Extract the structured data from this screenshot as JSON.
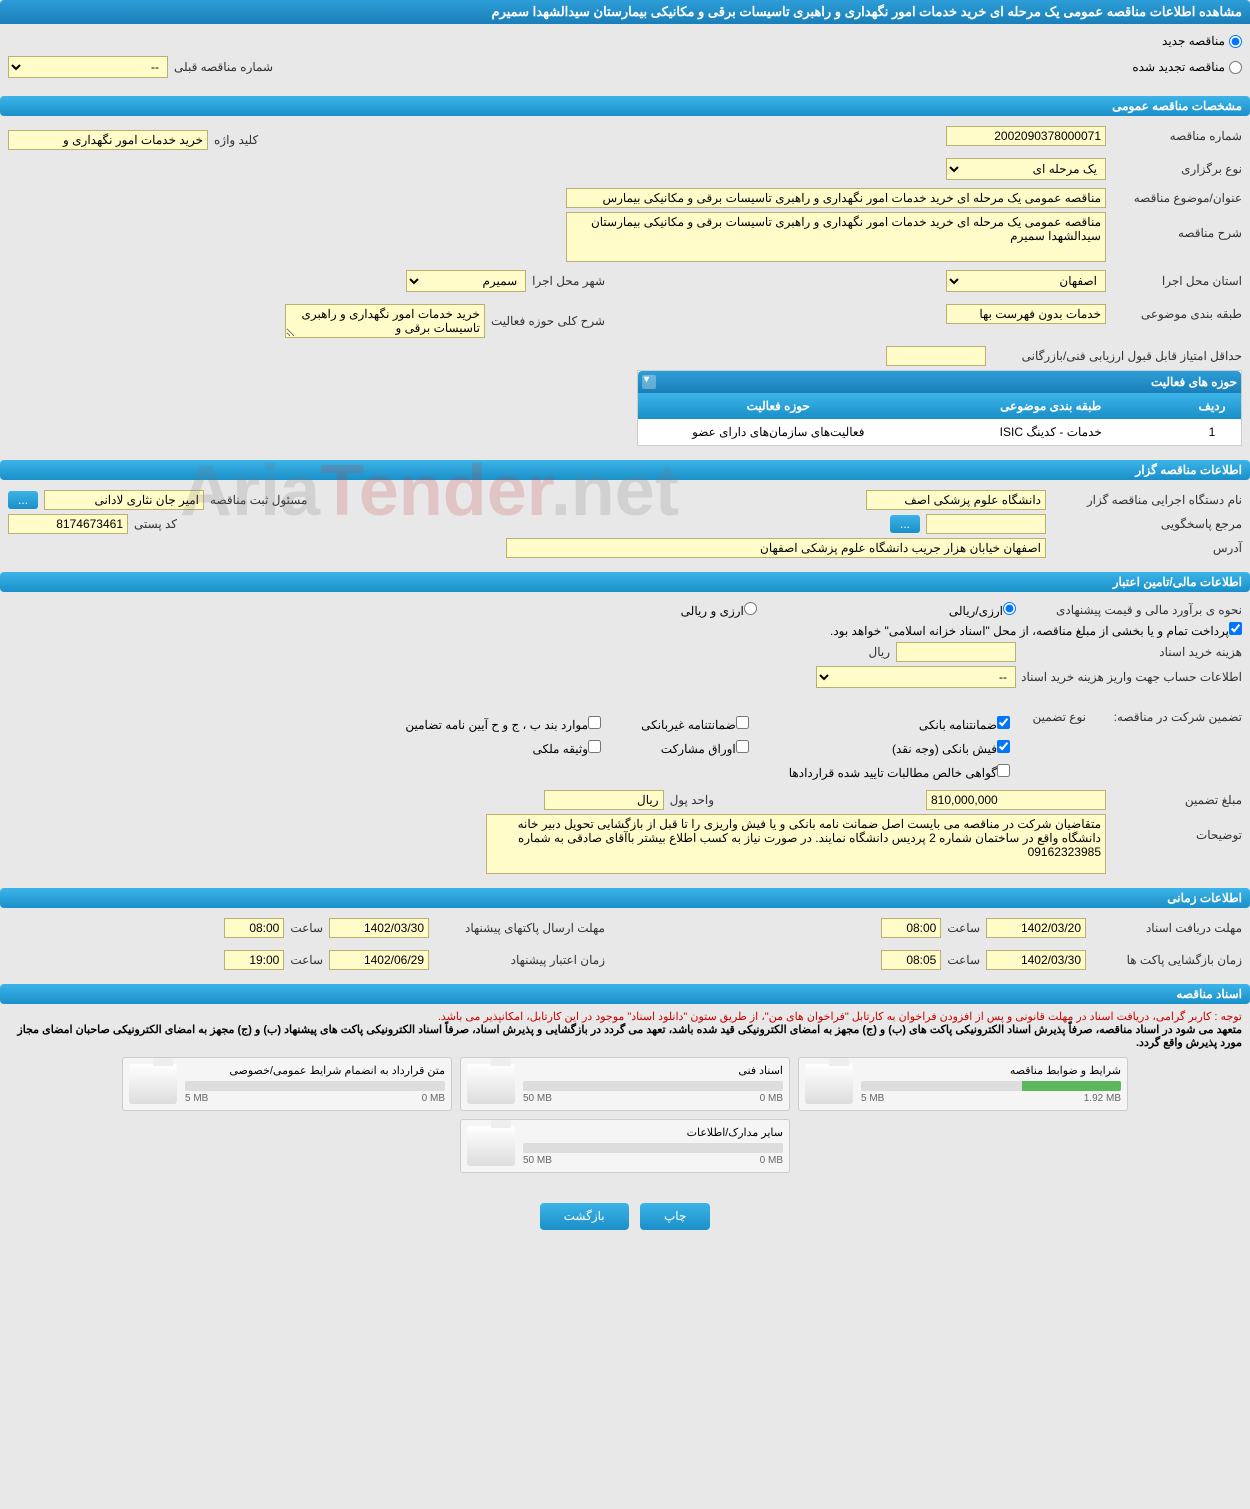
{
  "page_title": "مشاهده اطلاعات مناقصه عمومی یک مرحله ای خرید خدمات امور نگهداری و راهبری تاسیسات برقی و مکانیکی بیمارستان سیدالشهدا سمیرم",
  "radio_new": "مناقصه جدید",
  "radio_renewed": "مناقصه تجدید شده",
  "prev_number_label": "شماره مناقصه قبلی",
  "prev_number_placeholder": "--",
  "sections": {
    "general": "مشخصات مناقصه عمومی",
    "organizer": "اطلاعات مناقصه گزار",
    "financial": "اطلاعات مالی/تامین اعتبار",
    "timing": "اطلاعات زمانی",
    "docs": "اسناد مناقصه"
  },
  "general": {
    "number_label": "شماره مناقصه",
    "number": "2002090378000071",
    "type_label": "نوع برگزاری",
    "type": "یک مرحله ای",
    "keyword_label": "کلید واژه",
    "keyword": "خرید خدمات امور نگهداری و",
    "title_label": "عنوان/موضوع مناقصه",
    "title": "مناقصه عمومی یک مرحله ای خرید خدمات امور نگهداری و راهبری تاسیسات برقی و مکانیکی بیمارس",
    "desc_label": "شرح مناقصه",
    "desc": "مناقصه عمومی یک مرحله ای خرید خدمات امور نگهداری و راهبری تاسیسات برقی و مکانیکی بیمارستان سیدالشهدا سمیرم",
    "province_label": "استان محل اجرا",
    "province": "اصفهان",
    "city_label": "شهر محل اجرا",
    "city": "سمیرم",
    "class_label": "طبقه بندی موضوعی",
    "class": "خدمات بدون فهرست بها",
    "scope_label": "شرح کلی حوزه فعالیت",
    "scope": "خرید خدمات امور نگهداری و راهبری تاسیسات برقی و",
    "min_score_label": "حداقل امتیاز قابل قبول ارزیابی فنی/بازرگانی",
    "activities_header": "حوزه های فعالیت",
    "col_row": "ردیف",
    "col_class": "طبقه بندی موضوعی",
    "col_activity": "حوزه فعالیت",
    "row1_idx": "1",
    "row1_class": "خدمات - کدینگ ISIC",
    "row1_activity": "فعالیت‌های سازمان‌های دارای عضو"
  },
  "organizer": {
    "name_label": "نام دستگاه اجرایی مناقصه گزار",
    "name": "دانشگاه علوم پزشکی اصف",
    "responsible_label": "مسئول ثبت مناقصه",
    "responsible": "امیر جان نثاری لادانی",
    "ref_label": "مرجع پاسخگویی",
    "postal_label": "کد پستی",
    "postal": "8174673461",
    "address_label": "آدرس",
    "address": "اصفهان خیابان هزار جریب دانشگاه علوم پزشکی اصفهان"
  },
  "financial": {
    "estimate_label": "نحوه ی برآورد مالی و قیمت پیشنهادی",
    "opt_rial": "ارزی/ریالی",
    "opt_fx": "ارزی و ریالی",
    "note": "پرداخت تمام و یا بخشی از مبلغ مناقصه، از محل \"اسناد خزانه اسلامی\" خواهد بود.",
    "cost_label": "هزینه خرید اسناد",
    "cost_unit": "ریال",
    "account_label": "اطلاعات حساب جهت واریز هزینه خرید اسناد",
    "account_placeholder": "--",
    "guarantee_label": "تضمین شرکت در مناقصه:",
    "guarantee_type_label": "نوع تضمین",
    "chk_bank": "ضمانتنامه بانکی",
    "chk_nonbank": "ضمانتنامه غیربانکی",
    "chk_clause": "موارد بند ب ، ج و ح آیین نامه تضامین",
    "chk_fish": "فیش بانکی (وجه نقد)",
    "chk_partnership": "اوراق مشارکت",
    "chk_property": "وثیقه ملکی",
    "chk_cert": "گواهی خالص مطالبات تایید شده قراردادها",
    "amount_label": "مبلغ تضمین",
    "amount": "810,000,000",
    "currency_label": "واحد پول",
    "currency": "ریال",
    "explain_label": "توضیحات",
    "explain": "متقاضیان شرکت در مناقصه می بایست اصل ضمانت نامه بانکی و یا فیش واریزی را تا قبل از بازگشایی تحویل دبیر خانه دانشگاه واقع در ساختمان شماره 2 پردیس دانشگاه نمایند. در صورت نیاز به کسب اطلاع بیشتر باآقای صادقی به شماره 09162323985"
  },
  "timing": {
    "receive_label": "مهلت دریافت اسناد",
    "receive_date": "1402/03/20",
    "receive_time_label": "ساعت",
    "receive_time": "08:00",
    "send_label": "مهلت ارسال پاکتهای پیشنهاد",
    "send_date": "1402/03/30",
    "send_time": "08:00",
    "open_label": "زمان بازگشایی پاکت ها",
    "open_date": "1402/03/30",
    "open_time": "08:05",
    "validity_label": "زمان اعتبار پیشنهاد",
    "validity_date": "1402/06/29",
    "validity_time": "19:00"
  },
  "docs": {
    "note1": "توجه : کاربر گرامی، دریافت اسناد در مهلت قانونی و پس از افزودن فراخوان به کارتابل \"فراخوان های من\"، از طریق ستون \"دانلود اسناد\" موجود در این کارتابل، امکانپذیر می باشد.",
    "note2": "متعهد می شود در اسناد مناقصه، صرفاً پذیرش اسناد الکترونیکی پاکت های (ب) و (ج) مجهز به امضای الکترونیکی قید شده باشد، تعهد می گردد در بازگشایی و پذیرش اسناد، صرفاً اسناد الکترونیکی پاکت های پیشنهاد (ب) و (ج) مجهز به امضای الکترونیکی صاحبان امضای مجاز مورد پذیرش واقع گردد.",
    "tiles": [
      {
        "title": "شرایط و ضوابط مناقصه",
        "used": "1.92 MB",
        "max": "5 MB",
        "pct": 38
      },
      {
        "title": "اسناد فنی",
        "used": "0 MB",
        "max": "50 MB",
        "pct": 0
      },
      {
        "title": "متن قرارداد به انضمام شرایط عمومی/خصوصی",
        "used": "0 MB",
        "max": "5 MB",
        "pct": 0
      },
      {
        "title": "سایر مدارک/اطلاعات",
        "used": "0 MB",
        "max": "50 MB",
        "pct": 0
      }
    ]
  },
  "buttons": {
    "print": "چاپ",
    "back": "بازگشت",
    "ellipsis": "..."
  },
  "watermark": "AriaTender.net"
}
